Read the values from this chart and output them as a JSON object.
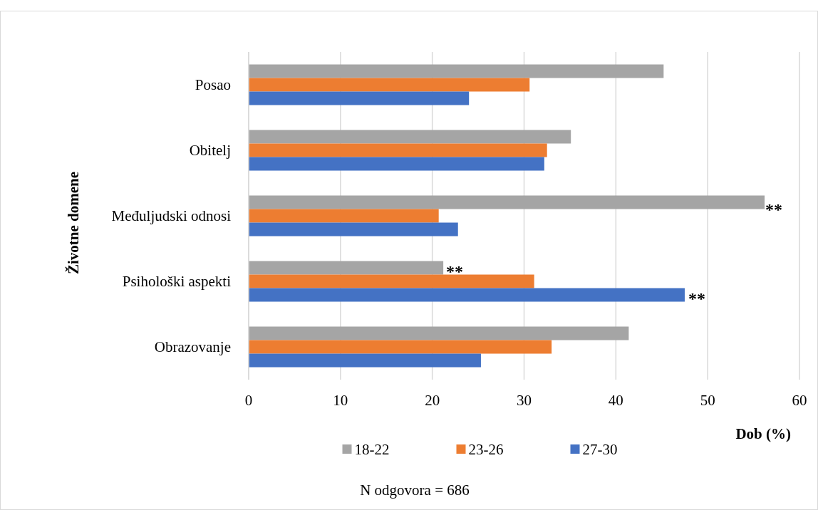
{
  "chart_data": {
    "type": "bar",
    "orientation": "horizontal",
    "ylabel": "Životne domene",
    "xlabel": "Dob (%)",
    "categories": [
      "Posao",
      "Obitelj",
      "Međuljudski odnosi",
      "Psihološki aspekti",
      "Obrazovanje"
    ],
    "series": [
      {
        "name": "18-22",
        "color": "#a5a5a5",
        "values": [
          45.2,
          35.1,
          56.2,
          21.2,
          41.4
        ]
      },
      {
        "name": "23-26",
        "color": "#ed7d31",
        "values": [
          30.6,
          32.5,
          20.7,
          31.1,
          33.0
        ]
      },
      {
        "name": "27-30",
        "color": "#4472c4",
        "values": [
          24.0,
          32.2,
          22.8,
          47.5,
          25.3
        ]
      }
    ],
    "xlim": [
      0,
      60
    ],
    "xticks": [
      0,
      10,
      20,
      30,
      40,
      50,
      60
    ],
    "grid": "x",
    "legend": "bottom",
    "annotations": [
      "**",
      "**",
      "**",
      "N odgovora = 686"
    ]
  }
}
